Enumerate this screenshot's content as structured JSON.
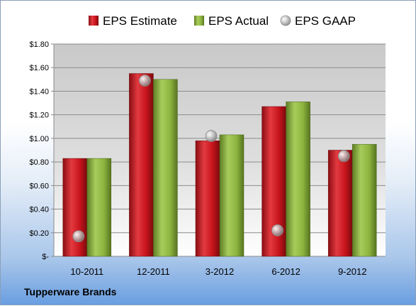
{
  "company": "Tupperware Brands",
  "colors": {
    "estimate": "#c8141c",
    "actual": "#8db43f",
    "gaap": "#b7b7b7",
    "plot_bg_top": "#d9d9d9",
    "plot_bg_bottom": "#ffffff"
  },
  "chart_data": {
    "type": "bar",
    "categories": [
      "10-2011",
      "12-2011",
      "3-2012",
      "6-2012",
      "9-2012"
    ],
    "series": [
      {
        "name": "EPS Estimate",
        "kind": "bar",
        "values": [
          0.83,
          1.55,
          0.98,
          1.27,
          0.9
        ]
      },
      {
        "name": "EPS Actual",
        "kind": "bar",
        "values": [
          0.83,
          1.5,
          1.03,
          1.31,
          0.95
        ]
      },
      {
        "name": "EPS GAAP",
        "kind": "marker",
        "values": [
          0.17,
          1.49,
          1.02,
          0.22,
          0.85
        ]
      }
    ],
    "ylim": [
      0,
      1.8
    ],
    "yticks": [
      0,
      0.2,
      0.4,
      0.6,
      0.8,
      1.0,
      1.2,
      1.4,
      1.6,
      1.8
    ],
    "ytick_labels": [
      "$-",
      "$0.20",
      "$0.40",
      "$0.60",
      "$0.80",
      "$1.00",
      "$1.20",
      "$1.40",
      "$1.60",
      "$1.80"
    ],
    "grid": true,
    "legend_position": "top"
  }
}
